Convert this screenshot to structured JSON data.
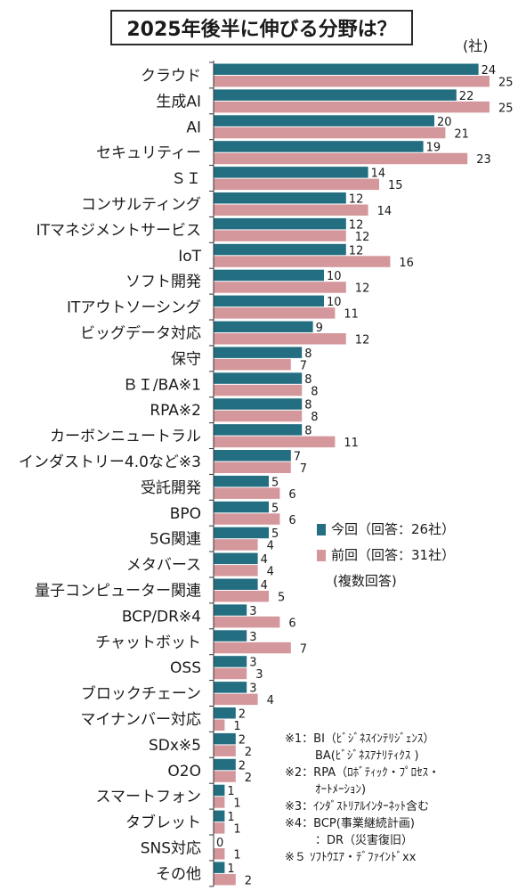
{
  "title": "2025年後半に伸びる分野は？",
  "unit": "(社)",
  "legend": {
    "current": "今回（回答：26社）",
    "previous": "前回（回答：31社）",
    "note": "(複数回答)"
  },
  "colors": {
    "current": "#236e80",
    "previous": "#d4979c"
  },
  "chart_data": {
    "type": "bar",
    "orientation": "horizontal",
    "categories": [
      "クラウド",
      "生成AI",
      "AI",
      "セキュリティー",
      "ＳＩ",
      "コンサルティング",
      "ITマネジメントサービス",
      "IoT",
      "ソフト開発",
      "ITアウトソーシング",
      "ビッグデータ対応",
      "保守",
      "ＢＩ/BA※1",
      "RPA※2",
      "カーボンニュートラル",
      "インダストリー4.0など※3",
      "受託開発",
      "BPO",
      "5G関連",
      "メタバース",
      "量子コンピューター関連",
      "BCP/DR※4",
      "チャットボット",
      "OSS",
      "ブロックチェーン",
      "マイナンバー対応",
      "SDx※5",
      "O2O",
      "スマートフォン",
      "タブレット",
      "SNS対応",
      "その他"
    ],
    "series": [
      {
        "name": "今回（回答：26社）",
        "values": [
          24,
          22,
          20,
          19,
          14,
          12,
          12,
          12,
          10,
          10,
          9,
          8,
          8,
          8,
          8,
          7,
          5,
          5,
          5,
          4,
          4,
          3,
          3,
          3,
          3,
          2,
          2,
          2,
          1,
          1,
          0,
          1
        ]
      },
      {
        "name": "前回（回答：31社）",
        "values": [
          25,
          25,
          21,
          23,
          15,
          14,
          12,
          16,
          12,
          11,
          12,
          7,
          8,
          8,
          11,
          7,
          6,
          6,
          4,
          4,
          5,
          6,
          7,
          3,
          4,
          1,
          2,
          2,
          1,
          1,
          1,
          2
        ]
      }
    ],
    "xlim": [
      0,
      25
    ]
  },
  "notes": [
    "※1：BI（ﾋﾞｼﾞﾈｽｲﾝﾃﾘｼﾞｪﾝｽ）",
    "BA(ﾋﾞｼﾞﾈｽｱﾅﾘﾃｨｸｽ )",
    "※2：RPA（ﾛﾎﾞﾃｨｯｸ・ﾌﾟﾛｾｽ・",
    "ｵｰﾄﾒｰｼｮﾝ)",
    "※3：ｲﾝﾀﾞｽﾄﾘｱﾙｲﾝﾀｰﾈｯﾄ含む",
    "※4：BCP(事業継続計画)",
    "：DR（災害復旧）",
    "※５ ｿﾌﾄｳｴｱ・ﾃﾞﾌｧｲﾝﾄﾞxx"
  ]
}
